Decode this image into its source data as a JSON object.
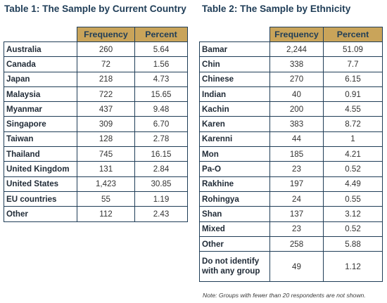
{
  "table1": {
    "title": "Table 1: The Sample by Current Country",
    "headers": [
      "Frequency",
      "Percent"
    ],
    "rows": [
      {
        "label": "Australia",
        "frequency": "260",
        "percent": "5.64"
      },
      {
        "label": "Canada",
        "frequency": "72",
        "percent": "1.56"
      },
      {
        "label": "Japan",
        "frequency": "218",
        "percent": "4.73"
      },
      {
        "label": "Malaysia",
        "frequency": "722",
        "percent": "15.65"
      },
      {
        "label": "Myanmar",
        "frequency": "437",
        "percent": "9.48"
      },
      {
        "label": "Singapore",
        "frequency": "309",
        "percent": "6.70"
      },
      {
        "label": "Taiwan",
        "frequency": "128",
        "percent": "2.78"
      },
      {
        "label": "Thailand",
        "frequency": "745",
        "percent": "16.15"
      },
      {
        "label": "United Kingdom",
        "frequency": "131",
        "percent": "2.84"
      },
      {
        "label": "United States",
        "frequency": "1,423",
        "percent": "30.85"
      },
      {
        "label": "EU countries",
        "frequency": "55",
        "percent": "1.19"
      },
      {
        "label": "Other",
        "frequency": "112",
        "percent": "2.43"
      }
    ]
  },
  "table2": {
    "title": "Table 2: The Sample by Ethnicity",
    "headers": [
      "Frequency",
      "Percent"
    ],
    "rows": [
      {
        "label": "Bamar",
        "frequency": "2,244",
        "percent": "51.09"
      },
      {
        "label": "Chin",
        "frequency": "338",
        "percent": "7.7"
      },
      {
        "label": "Chinese",
        "frequency": "270",
        "percent": "6.15"
      },
      {
        "label": "Indian",
        "frequency": "40",
        "percent": "0.91"
      },
      {
        "label": "Kachin",
        "frequency": "200",
        "percent": "4.55"
      },
      {
        "label": "Karen",
        "frequency": "383",
        "percent": "8.72"
      },
      {
        "label": "Karenni",
        "frequency": "44",
        "percent": "1"
      },
      {
        "label": "Mon",
        "frequency": "185",
        "percent": "4.21"
      },
      {
        "label": "Pa-O",
        "frequency": "23",
        "percent": "0.52"
      },
      {
        "label": "Rakhine",
        "frequency": "197",
        "percent": "4.49"
      },
      {
        "label": "Rohingya",
        "frequency": "24",
        "percent": "0.55"
      },
      {
        "label": "Shan",
        "frequency": "137",
        "percent": "3.12"
      },
      {
        "label": "Mixed",
        "frequency": "23",
        "percent": "0.52"
      },
      {
        "label": "Other",
        "frequency": "258",
        "percent": "5.88"
      },
      {
        "label": "Do not identify with any group",
        "frequency": "49",
        "percent": "1.12"
      }
    ],
    "note": "Note: Groups with fewer than 20 respondents are not shown."
  },
  "colors": {
    "header_fill": "#c9a45a",
    "border": "#1f3d57",
    "title": "#1f3d57"
  }
}
